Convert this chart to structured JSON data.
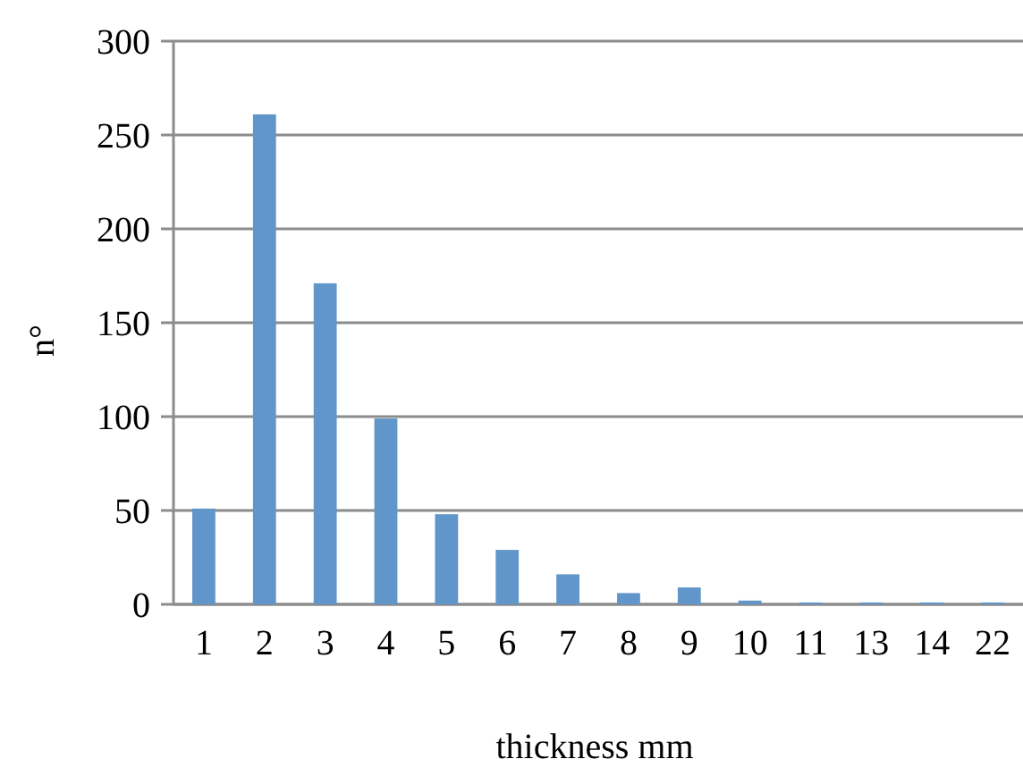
{
  "chart_data": {
    "type": "bar",
    "xlabel": "thickness mm",
    "ylabel": "n°",
    "categories": [
      "1",
      "2",
      "3",
      "4",
      "5",
      "6",
      "7",
      "8",
      "9",
      "10",
      "11",
      "13",
      "14",
      "22"
    ],
    "values": [
      51,
      261,
      171,
      99,
      48,
      29,
      16,
      6,
      9,
      2,
      1,
      1,
      1,
      1
    ],
    "color": "#6096c9",
    "ylim": [
      0,
      300
    ],
    "yticks": [
      0,
      50,
      100,
      150,
      200,
      250,
      300
    ],
    "grid": "y"
  }
}
